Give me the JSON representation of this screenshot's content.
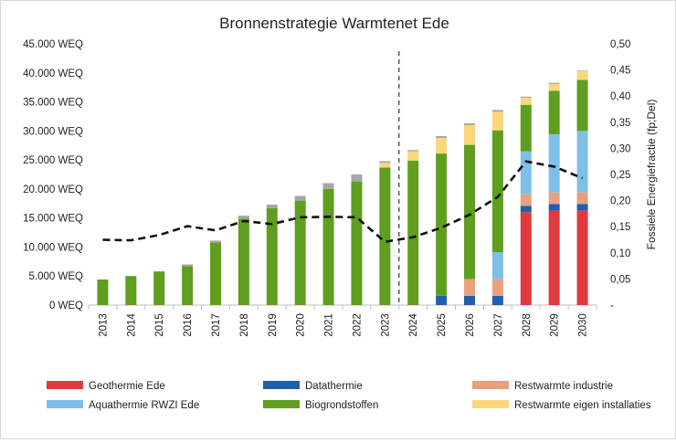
{
  "chart_data": {
    "type": "bar",
    "stacked": true,
    "title": "Bronnenstrategie Warmtenet Ede",
    "xlabel": "",
    "ylabel": "",
    "y2label": "Fossiele Energiefractie (fp;Del)",
    "ylim": [
      0,
      45000
    ],
    "y2lim": [
      0,
      0.5
    ],
    "grid": false,
    "legend_position": "bottom",
    "y_ticks": [
      "0 WEQ",
      "5.000 WEQ",
      "10.000 WEQ",
      "15.000 WEQ",
      "20.000 WEQ",
      "25.000 WEQ",
      "30.000 WEQ",
      "35.000 WEQ",
      "40.000 WEQ",
      "45.000 WEQ"
    ],
    "y2_ticks": [
      "-",
      "0,05",
      "0,10",
      "0,15",
      "0,20",
      "0,25",
      "0,30",
      "0,35",
      "0,40",
      "0,45",
      "0,50"
    ],
    "categories": [
      "2013",
      "2014",
      "2015",
      "2016",
      "2017",
      "2018",
      "2019",
      "2020",
      "2021",
      "2022",
      "2023",
      "2024",
      "2025",
      "2026",
      "2027",
      "2028",
      "2029",
      "2030"
    ],
    "divider_after": "2023",
    "series": [
      {
        "name": "Geothermie Ede",
        "color": "#e03a3e",
        "values": [
          0,
          0,
          0,
          0,
          0,
          0,
          0,
          0,
          0,
          0,
          0,
          0,
          0,
          0,
          0,
          16000,
          16300,
          16300
        ]
      },
      {
        "name": "Datathermie",
        "color": "#1f5fad",
        "values": [
          0,
          0,
          0,
          0,
          0,
          0,
          0,
          0,
          0,
          0,
          0,
          0,
          1600,
          1600,
          1600,
          1100,
          1100,
          1100
        ]
      },
      {
        "name": "Restwarmte industrie",
        "color": "#e8a07f",
        "values": [
          0,
          0,
          0,
          0,
          0,
          0,
          0,
          0,
          0,
          0,
          0,
          0,
          0,
          2900,
          2900,
          2000,
          2000,
          2000
        ]
      },
      {
        "name": "Aquathermie RWZI Ede",
        "color": "#7fbfe8",
        "values": [
          0,
          0,
          0,
          0,
          0,
          0,
          0,
          0,
          0,
          0,
          0,
          0,
          0,
          0,
          4600,
          7400,
          10000,
          10600
        ]
      },
      {
        "name": "Biogrondstoffen",
        "color": "#5f9e1f",
        "values": [
          4400,
          5000,
          5800,
          6700,
          10800,
          14900,
          16700,
          18000,
          20000,
          21300,
          23700,
          24900,
          24500,
          23100,
          21000,
          8000,
          7500,
          8800
        ]
      },
      {
        "name": "Restwarmte eigen installaties",
        "color": "#fbd77a",
        "values": [
          0,
          0,
          0,
          0,
          0,
          0,
          0,
          0,
          0,
          0,
          800,
          1600,
          2700,
          3400,
          3200,
          1200,
          1200,
          1500
        ]
      },
      {
        "name": "",
        "color": "#a6a6a6",
        "values": [
          0,
          0,
          0,
          300,
          300,
          500,
          600,
          800,
          1000,
          1200,
          300,
          200,
          300,
          300,
          300,
          200,
          200,
          100
        ]
      }
    ],
    "line": {
      "color": "#111111",
      "style": "dashed",
      "values": [
        0.125,
        0.124,
        0.134,
        0.151,
        0.143,
        0.161,
        0.155,
        0.168,
        0.169,
        0.168,
        0.121,
        0.13,
        0.148,
        0.173,
        0.207,
        0.275,
        0.265,
        0.243
      ]
    },
    "legend": [
      {
        "label": "Geothermie Ede",
        "color": "#e03a3e"
      },
      {
        "label": "Datathermie",
        "color": "#1f5fad"
      },
      {
        "label": "Restwarmte industrie",
        "color": "#e8a07f"
      },
      {
        "label": "Aquathermie RWZI Ede",
        "color": "#7fbfe8"
      },
      {
        "label": "Biogrondstoffen",
        "color": "#5f9e1f"
      },
      {
        "label": "Restwarmte eigen installaties",
        "color": "#fbd77a"
      }
    ]
  }
}
